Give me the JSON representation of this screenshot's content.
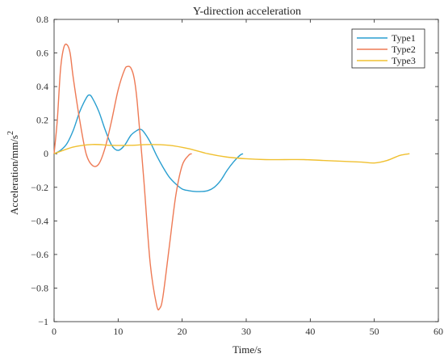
{
  "chart_data": {
    "type": "line",
    "title": "Y-direction acceleration",
    "xlabel": "Time/s",
    "ylabel": "Acceleration/mm/s",
    "ylabel_superscript": "2",
    "xlim": [
      0,
      60
    ],
    "ylim": [
      -1,
      0.8
    ],
    "xticks": [
      0,
      10,
      20,
      30,
      40,
      50,
      60
    ],
    "yticks": [
      0.8,
      0.6,
      0.4,
      0.2,
      0,
      -0.2,
      -0.4,
      -0.6,
      -0.8,
      -1
    ],
    "ytick_labels": [
      "0.8",
      "0.6",
      "0.4",
      "0.2",
      "0",
      "−0.2",
      "−0.4",
      "−0.6",
      "−0.8",
      "−1"
    ],
    "grid": false,
    "legend_position": "top-right",
    "series": [
      {
        "name": "Type1",
        "color": "#2a9fd0",
        "x": [
          0,
          1,
          2,
          3,
          4,
          5,
          5.5,
          6,
          7,
          8,
          9,
          10,
          11,
          12,
          13,
          13.5,
          14,
          15,
          16,
          17,
          18,
          19,
          20,
          21,
          22,
          23,
          24,
          25,
          26,
          27,
          28,
          29,
          29.5
        ],
        "y": [
          0,
          0.02,
          0.06,
          0.14,
          0.25,
          0.33,
          0.35,
          0.33,
          0.25,
          0.14,
          0.05,
          0.02,
          0.05,
          0.11,
          0.14,
          0.145,
          0.13,
          0.07,
          -0.01,
          -0.08,
          -0.14,
          -0.18,
          -0.21,
          -0.22,
          -0.225,
          -0.225,
          -0.22,
          -0.2,
          -0.16,
          -0.1,
          -0.05,
          -0.01,
          0
        ]
      },
      {
        "name": "Type2",
        "color": "#ee7a55",
        "x": [
          0,
          0.5,
          1,
          1.5,
          2,
          2.5,
          3,
          4,
          5,
          6,
          7,
          8,
          9,
          10,
          11,
          11.5,
          12,
          12.5,
          13,
          14,
          15,
          16,
          16.5,
          17,
          18,
          19,
          20,
          21,
          21.5
        ],
        "y": [
          0,
          0.2,
          0.5,
          0.63,
          0.65,
          0.6,
          0.45,
          0.2,
          0.0,
          -0.07,
          -0.06,
          0.04,
          0.2,
          0.38,
          0.5,
          0.52,
          0.51,
          0.45,
          0.3,
          -0.15,
          -0.65,
          -0.9,
          -0.92,
          -0.85,
          -0.55,
          -0.25,
          -0.07,
          -0.01,
          0
        ]
      },
      {
        "name": "Type3",
        "color": "#f0c030",
        "x": [
          0,
          3,
          6,
          9,
          12,
          15,
          18,
          21,
          24,
          27,
          30,
          33,
          36,
          39,
          42,
          45,
          48,
          50,
          52,
          54,
          55.5
        ],
        "y": [
          0,
          0.04,
          0.055,
          0.05,
          0.05,
          0.055,
          0.05,
          0.03,
          0.0,
          -0.02,
          -0.03,
          -0.035,
          -0.035,
          -0.035,
          -0.04,
          -0.045,
          -0.05,
          -0.055,
          -0.04,
          -0.01,
          0
        ]
      }
    ]
  }
}
